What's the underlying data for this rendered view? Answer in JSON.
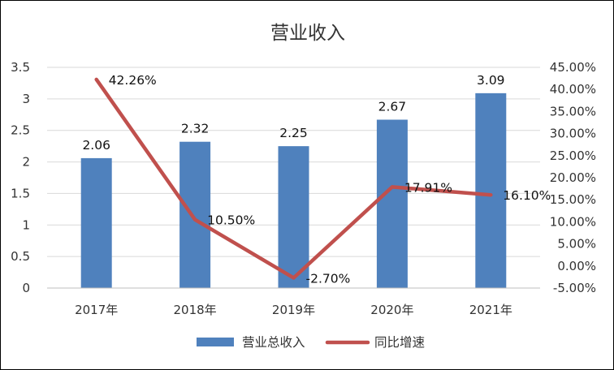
{
  "chart_data": {
    "type": "bar+line",
    "title": "营业收入",
    "categories": [
      "2017年",
      "2018年",
      "2019年",
      "2020年",
      "2021年"
    ],
    "series": [
      {
        "name": "营业总收入",
        "type": "bar",
        "axis": "left",
        "values": [
          2.06,
          2.32,
          2.25,
          2.67,
          3.09
        ],
        "labels": [
          "2.06",
          "2.32",
          "2.25",
          "2.67",
          "3.09"
        ],
        "color": "#4F81BD"
      },
      {
        "name": "同比增速",
        "type": "line",
        "axis": "right",
        "values": [
          42.26,
          10.5,
          -2.7,
          17.91,
          16.1
        ],
        "labels": [
          "42.26%",
          "10.50%",
          "-2.70%",
          "17.91%",
          "16.10%"
        ],
        "color": "#C0504D"
      }
    ],
    "y_left": {
      "range": [
        0,
        3.5
      ],
      "ticks": [
        0,
        0.5,
        1,
        1.5,
        2,
        2.5,
        3,
        3.5
      ],
      "tick_labels": [
        "0",
        "0.5",
        "1",
        "1.5",
        "2",
        "2.5",
        "3",
        "3.5"
      ]
    },
    "y_right": {
      "range": [
        -5,
        45
      ],
      "ticks": [
        -5,
        0,
        5,
        10,
        15,
        20,
        25,
        30,
        35,
        40,
        45
      ],
      "tick_labels": [
        "-5.00%",
        "0.00%",
        "5.00%",
        "10.00%",
        "15.00%",
        "20.00%",
        "25.00%",
        "30.00%",
        "35.00%",
        "40.00%",
        "45.00%"
      ]
    },
    "grid": true,
    "legend": "bottom",
    "gridline_color": "#D9D9D9"
  }
}
